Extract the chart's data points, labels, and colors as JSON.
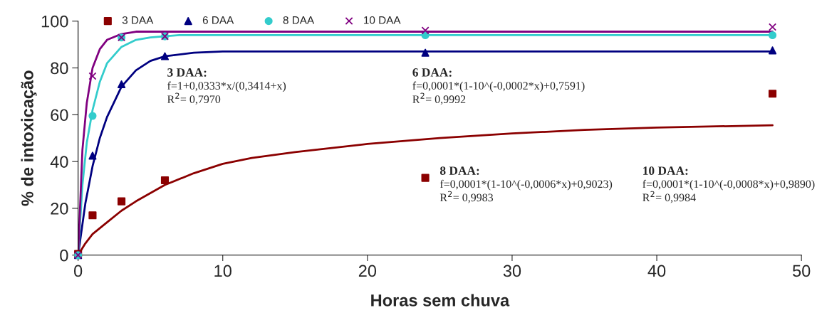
{
  "chart_data": {
    "type": "scatter",
    "xlabel": "Horas sem chuva",
    "ylabel": "% de intoxicação",
    "xlim": [
      0,
      50
    ],
    "ylim": [
      0,
      100
    ],
    "xticks": [
      0,
      10,
      20,
      30,
      40,
      50
    ],
    "yticks": [
      0,
      20,
      40,
      60,
      80,
      100
    ],
    "grid": false,
    "legend": "top left",
    "series": [
      {
        "name": "3 DAA",
        "color": "#8b0000",
        "marker": "square",
        "x": [
          0,
          1,
          3,
          6,
          24,
          48
        ],
        "values": [
          0.5,
          17,
          23,
          32,
          33,
          69
        ]
      },
      {
        "name": "6 DAA",
        "color": "#000080",
        "marker": "triangle",
        "x": [
          0,
          1,
          3,
          6,
          24,
          48
        ],
        "values": [
          0,
          42.5,
          73,
          85,
          86.5,
          87.5
        ]
      },
      {
        "name": "8 DAA",
        "color": "#33cccc",
        "marker": "circle",
        "x": [
          0,
          1,
          3,
          6,
          24,
          48
        ],
        "values": [
          0,
          59.5,
          93,
          93.5,
          94,
          94
        ]
      },
      {
        "name": "10 DAA",
        "color": "#800080",
        "marker": "cross",
        "x": [
          0,
          1,
          3,
          6,
          24,
          48
        ],
        "values": [
          0,
          76.5,
          93,
          93.5,
          96,
          97.5
        ]
      },
      {
        "type": "line",
        "color": "#8b0000",
        "x": [
          0,
          0.5,
          1,
          2,
          3,
          4,
          6,
          8,
          10,
          12,
          15,
          20,
          25,
          30,
          35,
          40,
          48
        ],
        "values": [
          0,
          5,
          9,
          14,
          19,
          23,
          30,
          35,
          39,
          41.5,
          44,
          47.5,
          50,
          52,
          53.5,
          54.5,
          55.5
        ]
      },
      {
        "type": "line",
        "color": "#000080",
        "x": [
          0,
          0.5,
          1,
          1.5,
          2,
          3,
          4,
          5,
          6,
          8,
          10,
          20,
          48
        ],
        "values": [
          0,
          22,
          38,
          50,
          59,
          72,
          79,
          83,
          85,
          86.5,
          87,
          87,
          87
        ]
      },
      {
        "type": "line",
        "color": "#33cccc",
        "x": [
          0,
          0.3,
          0.6,
          1,
          1.5,
          2,
          3,
          4,
          5,
          7,
          48
        ],
        "values": [
          0,
          30,
          48,
          62,
          74,
          82,
          89,
          92,
          93,
          94,
          94
        ]
      },
      {
        "type": "line",
        "color": "#800080",
        "x": [
          0,
          0.3,
          0.6,
          1,
          1.5,
          2,
          3,
          4,
          48
        ],
        "values": [
          0,
          45,
          65,
          80,
          88,
          92,
          94.5,
          95.5,
          95.5
        ]
      }
    ],
    "annotations": [
      "3 DAA:\nf=1+0,0333*x/(0,3414+x)\nR$^{2}$= 0,7970",
      "6 DAA:\nf=0,0001*(1-10^(-0,0002*x)+0,7591)\nR$^{2}$= 0,9992",
      "8 DAA:\nf=0,0001*(1-10^(-0,0006*x)+0,9023)\nR$^{2}$= 0,9983",
      "10 DAA:\nf=0,0001*(1-10^(-0,0008*x)+0,9890)\nR$^{2}$= 0,9984"
    ]
  }
}
